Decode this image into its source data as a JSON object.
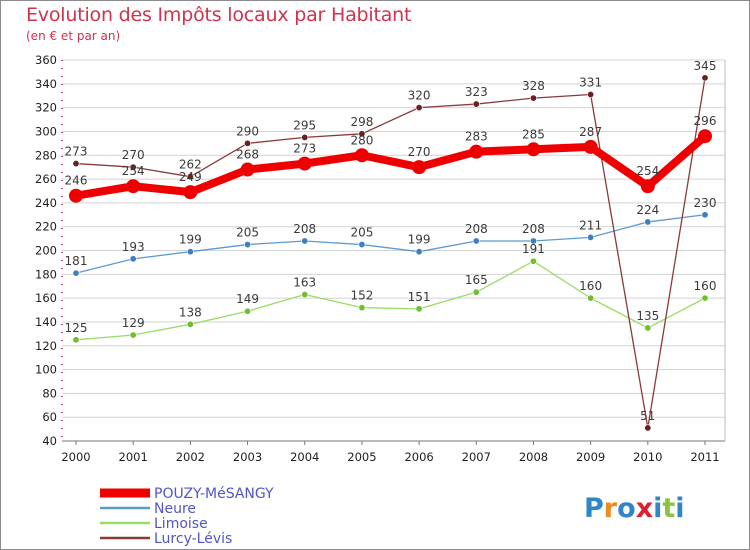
{
  "title": "Evolution des Impôts locaux par Habitant",
  "subtitle": "(en € et par an)",
  "logo": {
    "letters": [
      "P",
      "r",
      "o",
      "x",
      "i",
      "t",
      "i"
    ],
    "colors": [
      "#2f86c8",
      "#f08a1e",
      "#2f86c8",
      "#e02030",
      "#2f86c8",
      "#8ac43f",
      "#2f86c8"
    ]
  },
  "chart_data": {
    "type": "line",
    "title": "Evolution des Impôts locaux par Habitant",
    "subtitle": "(en € et par an)",
    "xlabel": "",
    "ylabel": "",
    "categories": [
      "2000",
      "2001",
      "2002",
      "2003",
      "2004",
      "2005",
      "2006",
      "2007",
      "2008",
      "2009",
      "2010",
      "2011"
    ],
    "ylim": [
      40,
      360
    ],
    "yticks": [
      40,
      60,
      80,
      100,
      120,
      140,
      160,
      180,
      200,
      220,
      240,
      260,
      280,
      300,
      320,
      340,
      360
    ],
    "grid": "horizontal",
    "legend_position": "bottom-left",
    "series": [
      {
        "name": "POUZY-MéSANGY",
        "values": [
          246,
          254,
          249,
          268,
          273,
          280,
          270,
          283,
          285,
          287,
          254,
          296
        ],
        "color": "#ee0000",
        "emphasis": true
      },
      {
        "name": "Neure",
        "values": [
          181,
          193,
          199,
          205,
          208,
          205,
          199,
          208,
          208,
          211,
          224,
          230
        ],
        "color": "#5b9ad2"
      },
      {
        "name": "Limoise",
        "values": [
          125,
          129,
          138,
          149,
          163,
          152,
          151,
          165,
          191,
          160,
          135,
          160
        ],
        "color": "#99dd66"
      },
      {
        "name": "Lurcy-Lévis",
        "values": [
          273,
          270,
          262,
          290,
          295,
          298,
          320,
          323,
          328,
          331,
          51,
          345
        ],
        "color": "#8b3a3a"
      }
    ]
  }
}
